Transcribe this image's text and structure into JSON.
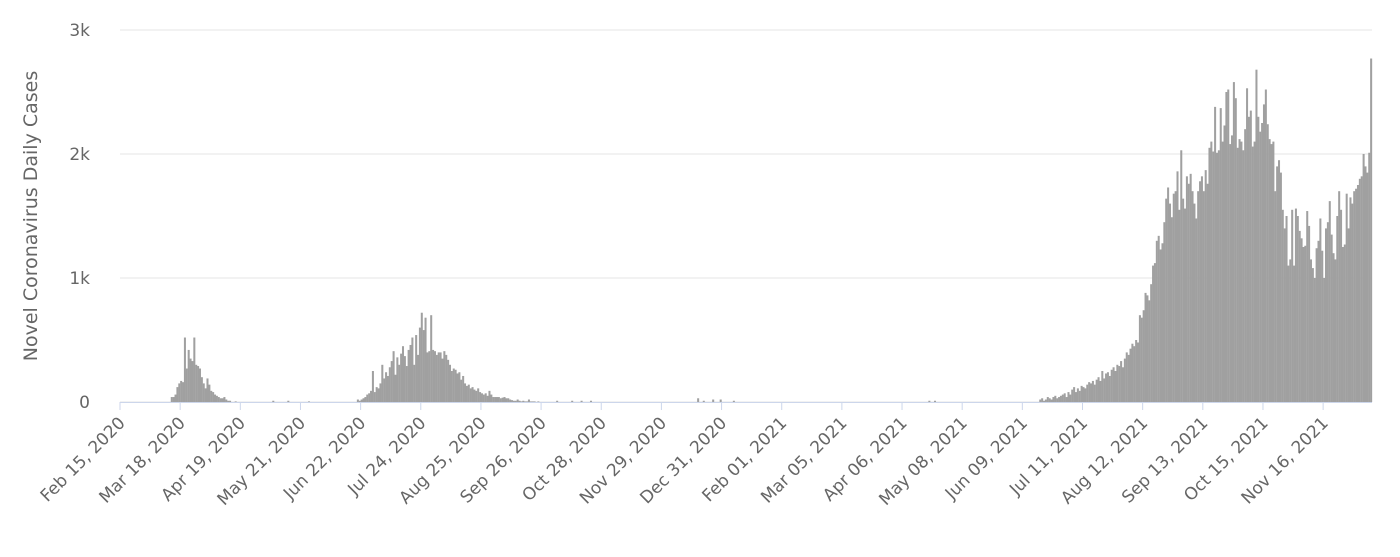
{
  "chart_data": {
    "type": "bar",
    "y_label": "Novel Coronavirus Daily Cases",
    "color": "#a0a0a0",
    "ylim": [
      0,
      3000
    ],
    "yticks": [
      0,
      {
        "value": 1000,
        "label": "1k"
      },
      {
        "value": 2000,
        "label": "2k"
      },
      {
        "value": 3000,
        "label": "3k"
      }
    ],
    "grid": true,
    "categories": [
      "Feb 15, 2020",
      null,
      null,
      null,
      null,
      null,
      null,
      null,
      null,
      null,
      null,
      null,
      null,
      null,
      null,
      null,
      null,
      null,
      null,
      null,
      null,
      null,
      null,
      null,
      null,
      null,
      null,
      null,
      null,
      null,
      null,
      null,
      "Mar 18, 2020",
      null,
      null,
      null,
      null,
      null,
      null,
      null,
      null,
      null,
      null,
      null,
      null,
      null,
      null,
      null,
      null,
      null,
      null,
      null,
      null,
      null,
      null,
      null,
      null,
      null,
      null,
      null,
      null,
      null,
      null,
      null,
      "Apr 19, 2020",
      null,
      null,
      null,
      null,
      null,
      null,
      null,
      null,
      null,
      null,
      null,
      null,
      null,
      null,
      null,
      null,
      null,
      null,
      null,
      null,
      null,
      null,
      null,
      null,
      null,
      null,
      null,
      null,
      null,
      null,
      null,
      "May 21, 2020",
      null,
      null,
      null,
      null,
      null,
      null,
      null,
      null,
      null,
      null,
      null,
      null,
      null,
      null,
      null,
      null,
      null,
      null,
      null,
      null,
      null,
      null,
      null,
      null,
      null,
      null,
      null,
      null,
      null,
      null,
      null,
      "Jun 22, 2020",
      null,
      null,
      null,
      null,
      null,
      null,
      null,
      null,
      null,
      null,
      null,
      null,
      null,
      null,
      null,
      null,
      null,
      null,
      null,
      null,
      null,
      null,
      null,
      null,
      null,
      null,
      null,
      null,
      null,
      null,
      null,
      "Jul 24, 2020",
      null,
      null,
      null,
      null,
      null,
      null,
      null,
      null,
      null,
      null,
      null,
      null,
      null,
      null,
      null,
      null,
      null,
      null,
      null,
      null,
      null,
      null,
      null,
      null,
      null,
      null,
      null,
      null,
      null,
      null,
      null,
      "Aug 25, 2020",
      null,
      null,
      null,
      null,
      null,
      null,
      null,
      null,
      null,
      null,
      null,
      null,
      null,
      null,
      null,
      null,
      null,
      null,
      null,
      null,
      null,
      null,
      null,
      null,
      null,
      null,
      null,
      null,
      null,
      null,
      null,
      "Sep 26, 2020",
      null,
      null,
      null,
      null,
      null,
      null,
      null,
      null,
      null,
      null,
      null,
      null,
      null,
      null,
      null,
      null,
      null,
      null,
      null,
      null,
      null,
      null,
      null,
      null,
      null,
      null,
      null,
      null,
      null,
      null,
      null,
      "Oct 28, 2020",
      null,
      null,
      null,
      null,
      null,
      null,
      null,
      null,
      null,
      null,
      null,
      null,
      null,
      null,
      null,
      null,
      null,
      null,
      null,
      null,
      null,
      null,
      null,
      null,
      null,
      null,
      null,
      null,
      null,
      null,
      null,
      "Nov 29, 2020",
      null,
      null,
      null,
      null,
      null,
      null,
      null,
      null,
      null,
      null,
      null,
      null,
      null,
      null,
      null,
      null,
      null,
      null,
      null,
      null,
      null,
      null,
      null,
      null,
      null,
      null,
      null,
      null,
      null,
      null,
      null,
      "Dec 31, 2020",
      null,
      null,
      null,
      null,
      null,
      null,
      null,
      null,
      null,
      null,
      null,
      null,
      null,
      null,
      null,
      null,
      null,
      null,
      null,
      null,
      null,
      null,
      null,
      null,
      null,
      null,
      null,
      null,
      null,
      null,
      null,
      "Feb 01, 2021",
      null,
      null,
      null,
      null,
      null,
      null,
      null,
      null,
      null,
      null,
      null,
      null,
      null,
      null,
      null,
      null,
      null,
      null,
      null,
      null,
      null,
      null,
      null,
      null,
      null,
      null,
      null,
      null,
      null,
      null,
      null,
      "Mar 05, 2021",
      null,
      null,
      null,
      null,
      null,
      null,
      null,
      null,
      null,
      null,
      null,
      null,
      null,
      null,
      null,
      null,
      null,
      null,
      null,
      null,
      null,
      null,
      null,
      null,
      null,
      null,
      null,
      null,
      null,
      null,
      null,
      "Apr 06, 2021",
      null,
      null,
      null,
      null,
      null,
      null,
      null,
      null,
      null,
      null,
      null,
      null,
      null,
      null,
      null,
      null,
      null,
      null,
      null,
      null,
      null,
      null,
      null,
      null,
      null,
      null,
      null,
      null,
      null,
      null,
      null,
      "May 08, 2021",
      null,
      null,
      null,
      null,
      null,
      null,
      null,
      null,
      null,
      null,
      null,
      null,
      null,
      null,
      null,
      null,
      null,
      null,
      null,
      null,
      null,
      null,
      null,
      null,
      null,
      null,
      null,
      null,
      null,
      null,
      null,
      "Jun 09, 2021",
      null,
      null,
      null,
      null,
      null,
      null,
      null,
      null,
      null,
      null,
      null,
      null,
      null,
      null,
      null,
      null,
      null,
      null,
      null,
      null,
      null,
      null,
      null,
      null,
      null,
      null,
      null,
      null,
      null,
      null,
      null,
      "Jul 11, 2021",
      null,
      null,
      null,
      null,
      null,
      null,
      null,
      null,
      null,
      null,
      null,
      null,
      null,
      null,
      null,
      null,
      null,
      null,
      null,
      null,
      null,
      null,
      null,
      null,
      null,
      null,
      null,
      null,
      null,
      null,
      null,
      "Aug 12, 2021",
      null,
      null,
      null,
      null,
      null,
      null,
      null,
      null,
      null,
      null,
      null,
      null,
      null,
      null,
      null,
      null,
      null,
      null,
      null,
      null,
      null,
      null,
      null,
      null,
      null,
      null,
      null,
      null,
      null,
      null,
      null,
      "Sep 13, 2021",
      null,
      null,
      null,
      null,
      null,
      null,
      null,
      null,
      null,
      null,
      null,
      null,
      null,
      null,
      null,
      null,
      null,
      null,
      null,
      null,
      null,
      null,
      null,
      null,
      null,
      null,
      null,
      null,
      null,
      null,
      null,
      "Oct 15, 2021",
      null,
      null,
      null,
      null,
      null,
      null,
      null,
      null,
      null,
      null,
      null,
      null,
      null,
      null,
      null,
      null,
      null,
      null,
      null,
      null,
      null,
      null,
      null,
      null,
      null,
      null,
      null,
      null,
      null,
      null,
      null,
      "Nov 16, 2021",
      null,
      null,
      null,
      null,
      null,
      null,
      null,
      null,
      null,
      null,
      null,
      null,
      null,
      null,
      null,
      null,
      null,
      null,
      null,
      null,
      null,
      null,
      null,
      null,
      null
    ],
    "values": [
      0,
      0,
      0,
      0,
      0,
      0,
      0,
      0,
      0,
      0,
      0,
      0,
      0,
      0,
      0,
      0,
      0,
      0,
      0,
      0,
      0,
      0,
      0,
      0,
      0,
      0,
      0,
      40,
      40,
      60,
      120,
      150,
      170,
      160,
      520,
      270,
      420,
      350,
      330,
      520,
      300,
      290,
      270,
      200,
      150,
      110,
      190,
      140,
      90,
      80,
      60,
      50,
      40,
      30,
      30,
      40,
      20,
      10,
      10,
      0,
      0,
      5,
      0,
      0,
      0,
      0,
      0,
      0,
      0,
      0,
      0,
      0,
      0,
      0,
      0,
      0,
      0,
      0,
      0,
      0,
      0,
      10,
      0,
      0,
      0,
      0,
      0,
      0,
      0,
      10,
      0,
      0,
      0,
      0,
      0,
      0,
      0,
      0,
      0,
      0,
      5,
      0,
      0,
      0,
      0,
      0,
      0,
      0,
      0,
      0,
      0,
      0,
      0,
      0,
      0,
      0,
      0,
      0,
      0,
      0,
      0,
      0,
      0,
      0,
      0,
      0,
      20,
      10,
      20,
      30,
      40,
      60,
      70,
      90,
      250,
      80,
      120,
      110,
      150,
      300,
      190,
      240,
      210,
      280,
      330,
      410,
      220,
      360,
      300,
      390,
      450,
      370,
      290,
      420,
      460,
      520,
      300,
      540,
      380,
      600,
      720,
      580,
      680,
      400,
      410,
      700,
      420,
      410,
      380,
      400,
      400,
      350,
      410,
      380,
      340,
      300,
      250,
      270,
      260,
      230,
      240,
      180,
      210,
      150,
      130,
      140,
      110,
      120,
      100,
      90,
      110,
      80,
      70,
      60,
      70,
      50,
      90,
      60,
      40,
      40,
      40,
      40,
      30,
      35,
      40,
      30,
      30,
      20,
      15,
      10,
      10,
      20,
      10,
      5,
      10,
      5,
      5,
      20,
      5,
      5,
      5,
      0,
      5,
      0,
      0,
      0,
      0,
      0,
      0,
      0,
      0,
      0,
      10,
      0,
      0,
      0,
      0,
      0,
      0,
      0,
      10,
      0,
      0,
      0,
      0,
      10,
      0,
      0,
      0,
      0,
      10,
      0,
      0,
      0,
      0,
      0,
      0,
      0,
      0,
      0,
      0,
      0,
      0,
      0,
      0,
      0,
      0,
      0,
      0,
      0,
      0,
      0,
      0,
      0,
      0,
      0,
      0,
      0,
      0,
      0,
      0,
      0,
      0,
      0,
      0,
      0,
      0,
      0,
      0,
      0,
      0,
      0,
      0,
      0,
      0,
      0,
      0,
      0,
      0,
      0,
      0,
      0,
      0,
      0,
      0,
      0,
      0,
      30,
      0,
      0,
      10,
      0,
      0,
      0,
      0,
      20,
      0,
      0,
      0,
      20,
      0,
      0,
      0,
      0,
      0,
      0,
      10,
      0,
      0,
      0,
      0,
      0,
      0,
      0,
      0,
      0,
      0,
      0,
      0,
      0,
      0,
      0,
      0,
      0,
      0,
      0,
      0,
      0,
      0,
      0,
      0,
      0,
      0,
      0,
      0,
      0,
      0,
      0,
      0,
      0,
      0,
      0,
      0,
      0,
      0,
      0,
      0,
      0,
      0,
      0,
      0,
      0,
      0,
      0,
      0,
      0,
      0,
      0,
      0,
      0,
      0,
      0,
      0,
      0,
      0,
      0,
      0,
      0,
      0,
      0,
      0,
      0,
      0,
      0,
      0,
      0,
      0,
      0,
      0,
      0,
      0,
      0,
      0,
      0,
      0,
      0,
      0,
      0,
      0,
      0,
      0,
      0,
      0,
      0,
      0,
      0,
      0,
      0,
      0,
      0,
      0,
      0,
      0,
      0,
      0,
      0,
      0,
      0,
      0,
      0,
      10,
      0,
      0,
      10,
      0,
      0,
      0,
      0,
      0,
      0,
      0,
      0,
      0,
      0,
      0,
      0,
      0,
      0,
      0,
      0,
      0,
      0,
      0,
      0,
      0,
      0,
      0,
      0,
      0,
      0,
      0,
      0,
      0,
      0,
      0,
      0,
      0,
      0,
      0,
      0,
      0,
      0,
      0,
      0,
      0,
      0,
      0,
      0,
      0,
      0,
      0,
      0,
      0,
      0,
      0,
      0,
      0,
      0,
      0,
      20,
      30,
      10,
      20,
      40,
      30,
      20,
      40,
      50,
      30,
      40,
      50,
      60,
      70,
      40,
      80,
      60,
      100,
      120,
      80,
      110,
      90,
      130,
      120,
      110,
      140,
      160,
      150,
      170,
      140,
      180,
      200,
      170,
      250,
      190,
      230,
      240,
      210,
      260,
      280,
      250,
      300,
      290,
      330,
      280,
      350,
      400,
      380,
      430,
      470,
      450,
      500,
      480,
      700,
      680,
      740,
      880,
      860,
      820,
      950,
      1100,
      1120,
      1300,
      1340,
      1230,
      1280,
      1450,
      1640,
      1730,
      1600,
      1490,
      1680,
      1700,
      1860,
      1550,
      2030,
      1640,
      1560,
      1820,
      1760,
      1840,
      1700,
      1600,
      1480,
      1700,
      1780,
      1820,
      1700,
      1870,
      1760,
      2050,
      2100,
      2020,
      2380,
      2010,
      2030,
      2370,
      2100,
      2230,
      2500,
      2520,
      2080,
      2150,
      2580,
      2450,
      2050,
      2120,
      2100,
      2030,
      2200,
      2530,
      2300,
      2350,
      2060,
      2100,
      2680,
      2300,
      2180,
      2250,
      2400,
      2520,
      2240,
      2120,
      2080,
      2100,
      1700,
      1900,
      1950,
      1850,
      1550,
      1400,
      1500,
      1100,
      1150,
      1550,
      1100,
      1560,
      1500,
      1380,
      1320,
      1250,
      1260,
      1540,
      1420,
      1150,
      1080,
      1000,
      1240,
      1300,
      1480,
      1220,
      1000,
      1400,
      1450,
      1620,
      1350,
      1200,
      1150,
      1500,
      1700,
      1550,
      1250,
      1270,
      1680,
      1400,
      1650,
      1600,
      1700,
      1720,
      1750,
      1800,
      1820,
      2000,
      1900,
      1850,
      2010,
      2770
    ]
  }
}
